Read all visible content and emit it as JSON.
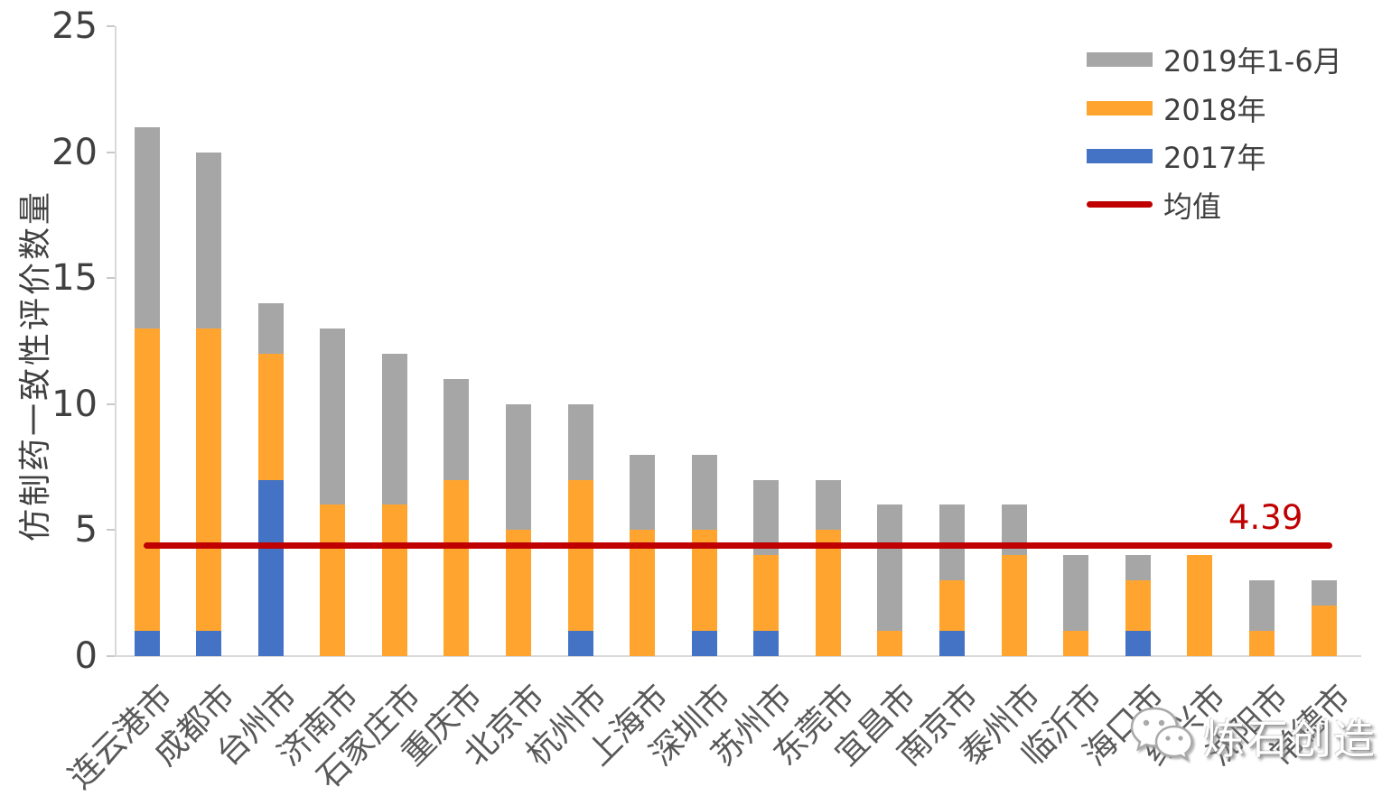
{
  "chart_data": {
    "type": "bar",
    "stacked": true,
    "ylabel": "仿制药一致性评价数量",
    "xlabel": "",
    "ylim": [
      0,
      25
    ],
    "yticks": [
      0,
      5,
      10,
      15,
      20,
      25
    ],
    "grid": false,
    "legend_position": "top-right",
    "categories": [
      "连云港市",
      "成都市",
      "台州市",
      "济南市",
      "石家庄市",
      "重庆市",
      "北京市",
      "杭州市",
      "上海市",
      "深圳市",
      "苏州市",
      "东莞市",
      "宜昌市",
      "南京市",
      "泰州市",
      "临沂市",
      "海口市",
      "绍兴市",
      "沈阳市",
      "常德市"
    ],
    "series": [
      {
        "name": "2017年",
        "color": "#4472C4",
        "values": [
          1,
          1,
          7,
          0,
          0,
          0,
          0,
          1,
          0,
          1,
          1,
          0,
          0,
          1,
          0,
          0,
          1,
          0,
          0,
          0
        ]
      },
      {
        "name": "2018年",
        "color": "#FFA52F",
        "values": [
          12,
          12,
          5,
          6,
          6,
          7,
          5,
          6,
          5,
          4,
          3,
          5,
          1,
          2,
          4,
          1,
          2,
          4,
          1,
          2
        ]
      },
      {
        "name": "2019年1-6月",
        "color": "#A6A6A6",
        "values": [
          8,
          7,
          2,
          7,
          6,
          4,
          5,
          3,
          3,
          3,
          3,
          2,
          5,
          3,
          2,
          3,
          1,
          0,
          2,
          1
        ]
      }
    ],
    "totals": [
      21,
      20,
      14,
      13,
      12,
      11,
      10,
      10,
      8,
      8,
      7,
      7,
      6,
      6,
      6,
      4,
      4,
      4,
      3,
      3
    ],
    "mean_line": {
      "legend_label": "均值",
      "value": 4.39,
      "display": "4.39",
      "color": "#C00000"
    },
    "legend_items": [
      {
        "label": "2019年1-6月",
        "color": "#A6A6A6",
        "type": "bar"
      },
      {
        "label": "2018年",
        "color": "#FFA52F",
        "type": "bar"
      },
      {
        "label": "2017年",
        "color": "#4472C4",
        "type": "bar"
      },
      {
        "label": "均值",
        "color": "#C00000",
        "type": "line"
      }
    ]
  },
  "watermark": {
    "icon": "wechat-icon",
    "text": "炼石创造"
  }
}
